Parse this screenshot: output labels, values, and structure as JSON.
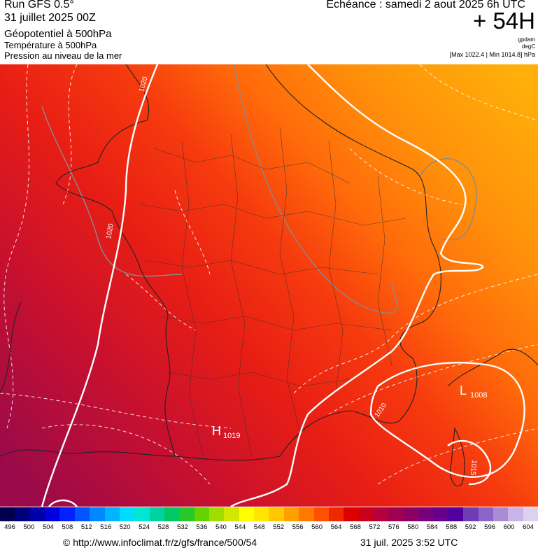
{
  "header": {
    "run": "Run GFS 0.5°",
    "run_date": "31 juillet 2025 00Z",
    "layer1": "Géopotentiel à 500hPa",
    "layer2": "Température à 500hPa",
    "layer3": "Pression au niveau de la mer",
    "echeance": "Echéance : samedi 2 aout 2025 6h UTC",
    "lead": "+ 54H",
    "unit1": "gpdam",
    "unit2": "degC",
    "minmax": "[Max 1022.4 | Min 1014.8] hPa"
  },
  "map": {
    "isobar_labels": [
      "1020",
      "1020",
      "1015",
      "1010",
      "1015"
    ],
    "pressure_centers": [
      {
        "letter": "H",
        "value": "1019"
      },
      {
        "letter": "L",
        "value": "1008"
      }
    ]
  },
  "colorbar": {
    "ticks": [
      "496",
      "500",
      "504",
      "508",
      "512",
      "516",
      "520",
      "524",
      "528",
      "532",
      "536",
      "540",
      "544",
      "548",
      "552",
      "556",
      "560",
      "564",
      "568",
      "572",
      "576",
      "580",
      "584",
      "588",
      "592",
      "596",
      "600",
      "604"
    ],
    "colors": [
      "#00004e",
      "#00007a",
      "#0000aa",
      "#0000dc",
      "#0020ff",
      "#0055ff",
      "#0088ff",
      "#00b4ff",
      "#00dcff",
      "#00e6d2",
      "#00d2a0",
      "#00c864",
      "#28c828",
      "#64d200",
      "#a0dc00",
      "#d2e600",
      "#ffff00",
      "#ffe600",
      "#ffc800",
      "#ffa000",
      "#ff7800",
      "#ff5000",
      "#f02800",
      "#dc0000",
      "#c8001e",
      "#b4003c",
      "#a00050",
      "#8c0064",
      "#780078",
      "#64008c",
      "#5000a0",
      "#6e3cb4",
      "#8c64c8",
      "#aa8cd2",
      "#c8b4e6",
      "#dcd2f0"
    ]
  },
  "footer": {
    "url": "© http://www.infoclimat.fr/z/gfs/france/500/54",
    "timestamp": "31 juil. 2025  3:52 UTC"
  }
}
